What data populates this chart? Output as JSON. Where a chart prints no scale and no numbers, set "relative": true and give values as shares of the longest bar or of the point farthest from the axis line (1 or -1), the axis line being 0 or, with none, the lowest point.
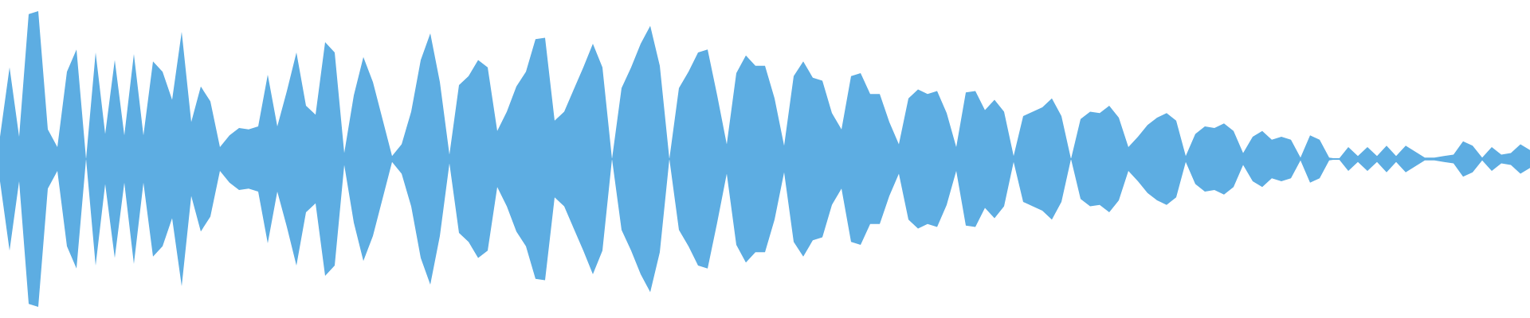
{
  "chart_data": {
    "type": "area",
    "relative": true,
    "ref_lines": [
      {
        "axis": "y",
        "value": 0,
        "color": "#5dade2"
      }
    ],
    "categories": [
      null,
      null,
      null,
      null,
      null,
      null,
      null,
      null,
      null,
      null,
      null,
      null,
      null,
      null,
      null,
      null,
      null,
      null,
      null,
      null,
      null,
      null,
      null,
      null,
      null,
      null,
      null,
      null,
      null,
      null,
      null,
      null,
      null,
      null,
      null,
      null,
      null,
      null,
      null,
      null,
      null,
      null,
      null,
      null,
      null,
      null,
      null,
      null,
      null,
      null,
      null,
      null,
      null,
      null,
      null,
      null,
      null,
      null,
      null,
      null,
      null,
      null,
      null,
      null,
      null,
      null,
      null,
      null,
      null,
      null,
      null,
      null,
      null,
      null,
      null,
      null,
      null,
      null,
      null,
      null,
      null,
      null,
      null,
      null,
      null,
      null,
      null,
      null,
      null,
      null,
      null,
      null,
      null,
      null,
      null,
      null,
      null,
      null,
      null,
      null,
      null,
      null,
      null,
      null,
      null,
      null,
      null,
      null,
      null,
      null,
      null,
      null,
      null,
      null,
      null,
      null,
      null,
      null,
      null,
      null,
      null,
      null,
      null,
      null,
      null,
      null,
      null,
      null,
      null,
      null,
      null,
      null,
      null,
      null,
      null,
      null,
      null,
      null,
      null,
      null,
      null,
      null,
      null,
      null,
      null,
      null,
      null,
      null,
      null,
      null,
      null,
      null,
      null,
      null,
      null,
      null,
      null,
      null,
      null,
      null,
      null
    ],
    "series": [
      {
        "color": "#5dade2",
        "values": [
          0.15,
          0.62,
          0.15,
          0.98,
          1.0,
          0.2,
          0.08,
          0.59,
          0.74,
          0,
          0.72,
          0.17,
          0.67,
          0.16,
          0.71,
          0.16,
          0.66,
          0.59,
          0.4,
          0.86,
          0.25,
          0.49,
          0.39,
          0.08,
          0.16,
          0.21,
          0.2,
          0.22,
          0.57,
          0.22,
          0.46,
          0.72,
          0.36,
          0.3,
          0.79,
          0.72,
          0.04,
          0.43,
          0.69,
          0.52,
          0.27,
          0.02,
          0.1,
          0.32,
          0.67,
          0.85,
          0.52,
          0.03,
          0.5,
          0.56,
          0.67,
          0.62,
          0.19,
          0.32,
          0.49,
          0.59,
          0.81,
          0.82,
          0.26,
          0.32,
          0.47,
          0.62,
          0.78,
          0.62,
          0,
          0.48,
          0.62,
          0.78,
          0.9,
          0.63,
          0,
          0.48,
          0.59,
          0.72,
          0.74,
          0.43,
          0.1,
          0.58,
          0.7,
          0.63,
          0.63,
          0.41,
          0.09,
          0.56,
          0.66,
          0.55,
          0.53,
          0.31,
          0.2,
          0.56,
          0.58,
          0.44,
          0.44,
          0.25,
          0.1,
          0.41,
          0.47,
          0.44,
          0.46,
          0.31,
          0.08,
          0.45,
          0.46,
          0.33,
          0.4,
          0.32,
          0.02,
          0.29,
          0.32,
          0.35,
          0.41,
          0.29,
          0,
          0.27,
          0.32,
          0.31,
          0.36,
          0.28,
          0.08,
          0.15,
          0.23,
          0.28,
          0.31,
          0.26,
          0.02,
          0.17,
          0.22,
          0.21,
          0.24,
          0.19,
          0.04,
          0.15,
          0.19,
          0.13,
          0.15,
          0.13,
          0.01,
          0.16,
          0.13,
          0.01,
          0,
          0.08,
          0.02,
          0.08,
          0.02,
          0.09,
          0.02,
          0.09,
          0.05,
          0.01,
          0.01,
          0.02,
          0.03,
          0.12,
          0.09,
          0.01,
          0.08,
          0.03,
          0.04,
          0.1,
          0.06
        ]
      },
      {
        "color": "#5dade2",
        "values": [
          -0.15,
          -0.62,
          -0.15,
          -0.98,
          -1.0,
          -0.2,
          -0.08,
          -0.59,
          -0.74,
          0,
          -0.72,
          -0.17,
          -0.67,
          -0.16,
          -0.71,
          -0.16,
          -0.66,
          -0.59,
          -0.4,
          -0.86,
          -0.25,
          -0.49,
          -0.39,
          -0.08,
          -0.16,
          -0.21,
          -0.2,
          -0.22,
          -0.57,
          -0.22,
          -0.46,
          -0.72,
          -0.36,
          -0.3,
          -0.79,
          -0.72,
          -0.04,
          -0.43,
          -0.69,
          -0.52,
          -0.27,
          -0.02,
          -0.1,
          -0.32,
          -0.67,
          -0.85,
          -0.52,
          -0.03,
          -0.5,
          -0.56,
          -0.67,
          -0.62,
          -0.19,
          -0.32,
          -0.49,
          -0.59,
          -0.81,
          -0.82,
          -0.26,
          -0.32,
          -0.47,
          -0.62,
          -0.78,
          -0.62,
          0,
          -0.48,
          -0.62,
          -0.78,
          -0.9,
          -0.63,
          0,
          -0.48,
          -0.59,
          -0.72,
          -0.74,
          -0.43,
          -0.1,
          -0.58,
          -0.7,
          -0.63,
          -0.63,
          -0.41,
          -0.09,
          -0.56,
          -0.66,
          -0.55,
          -0.53,
          -0.31,
          -0.2,
          -0.56,
          -0.58,
          -0.44,
          -0.44,
          -0.25,
          -0.1,
          -0.41,
          -0.47,
          -0.44,
          -0.46,
          -0.31,
          -0.08,
          -0.45,
          -0.46,
          -0.33,
          -0.4,
          -0.32,
          -0.02,
          -0.29,
          -0.32,
          -0.35,
          -0.41,
          -0.29,
          0,
          -0.27,
          -0.32,
          -0.31,
          -0.36,
          -0.28,
          -0.08,
          -0.15,
          -0.23,
          -0.28,
          -0.31,
          -0.26,
          -0.02,
          -0.17,
          -0.22,
          -0.21,
          -0.24,
          -0.19,
          -0.04,
          -0.15,
          -0.19,
          -0.13,
          -0.15,
          -0.13,
          -0.01,
          -0.16,
          -0.13,
          -0.01,
          0,
          -0.08,
          -0.02,
          -0.08,
          -0.02,
          -0.09,
          -0.02,
          -0.09,
          -0.05,
          -0.01,
          -0.01,
          -0.02,
          -0.03,
          -0.12,
          -0.09,
          -0.01,
          -0.08,
          -0.03,
          -0.04,
          -0.1,
          -0.06
        ]
      }
    ]
  }
}
